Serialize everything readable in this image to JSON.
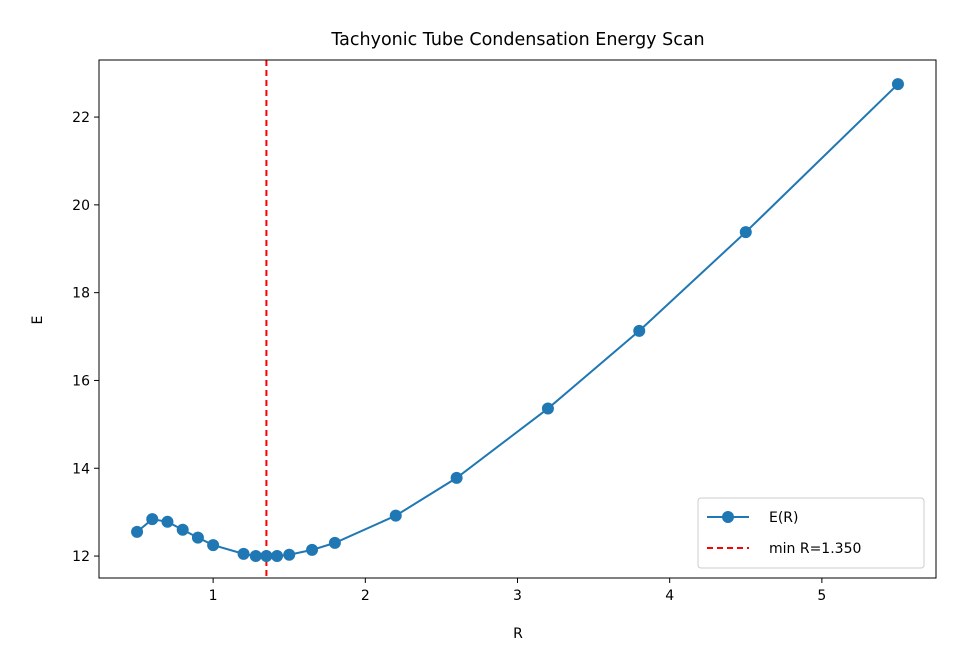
{
  "chart_data": {
    "type": "line",
    "title": "Tachyonic Tube Condensation Energy Scan",
    "xlabel": "R",
    "ylabel": "E",
    "xlim": [
      0.25,
      5.75
    ],
    "ylim": [
      11.5,
      23.3
    ],
    "xticks": [
      1,
      2,
      3,
      4,
      5
    ],
    "yticks": [
      12,
      14,
      16,
      18,
      20,
      22
    ],
    "grid": false,
    "legend_position": "lower-right",
    "series": [
      {
        "name": "E(R)",
        "color": "#1f77b4",
        "marker": "circle",
        "x": [
          0.5,
          0.6,
          0.7,
          0.8,
          0.9,
          1.0,
          1.2,
          1.28,
          1.35,
          1.42,
          1.5,
          1.65,
          1.8,
          2.2,
          2.6,
          3.2,
          3.8,
          4.5,
          5.5
        ],
        "y": [
          12.55,
          12.84,
          12.78,
          12.6,
          12.42,
          12.25,
          12.05,
          12.0,
          12.0,
          12.0,
          12.03,
          12.14,
          12.3,
          12.92,
          13.78,
          15.36,
          17.13,
          19.38,
          22.75
        ]
      }
    ],
    "vline": {
      "name": "min R=1.350",
      "x": 1.35,
      "color": "#ff0000",
      "style": "dashed"
    }
  }
}
